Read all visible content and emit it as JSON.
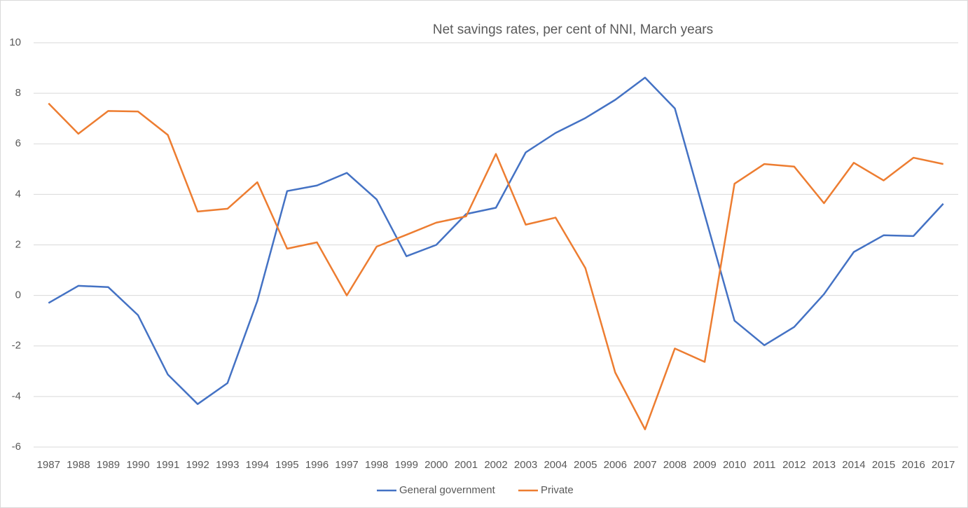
{
  "chart_data": {
    "type": "line",
    "title": "Net savings rates, per cent of NNI, March years",
    "categories": [
      "1987",
      "1988",
      "1989",
      "1990",
      "1991",
      "1992",
      "1993",
      "1994",
      "1995",
      "1996",
      "1997",
      "1998",
      "1999",
      "2000",
      "2001",
      "2002",
      "2003",
      "2004",
      "2005",
      "2006",
      "2007",
      "2008",
      "2009",
      "2010",
      "2011",
      "2012",
      "2013",
      "2014",
      "2015",
      "2016",
      "2017"
    ],
    "series": [
      {
        "name": "General government",
        "color": "#4472c4",
        "values": [
          -0.3,
          0.38,
          0.33,
          -0.78,
          -3.13,
          -4.3,
          -3.47,
          -0.22,
          4.13,
          4.35,
          4.85,
          3.8,
          1.55,
          2.0,
          3.22,
          3.47,
          5.66,
          6.43,
          7.02,
          7.74,
          8.62,
          7.4,
          3.2,
          -1.0,
          -1.97,
          -1.25,
          0.05,
          1.72,
          2.38,
          2.35,
          3.63
        ]
      },
      {
        "name": "Private",
        "color": "#ed7d31",
        "values": [
          7.6,
          6.4,
          7.3,
          7.28,
          6.35,
          3.32,
          3.43,
          4.48,
          1.85,
          2.1,
          0,
          1.93,
          2.4,
          2.88,
          3.13,
          5.6,
          2.8,
          3.08,
          1.08,
          -3.05,
          -5.3,
          -2.1,
          -2.63,
          4.42,
          5.2,
          5.1,
          3.65,
          5.25,
          4.55,
          5.45,
          5.2
        ]
      }
    ],
    "ylim": [
      -6,
      10
    ],
    "yticks": [
      -6,
      -4,
      -2,
      0,
      2,
      4,
      6,
      8,
      10
    ],
    "grid": true,
    "legend": "bottom"
  }
}
